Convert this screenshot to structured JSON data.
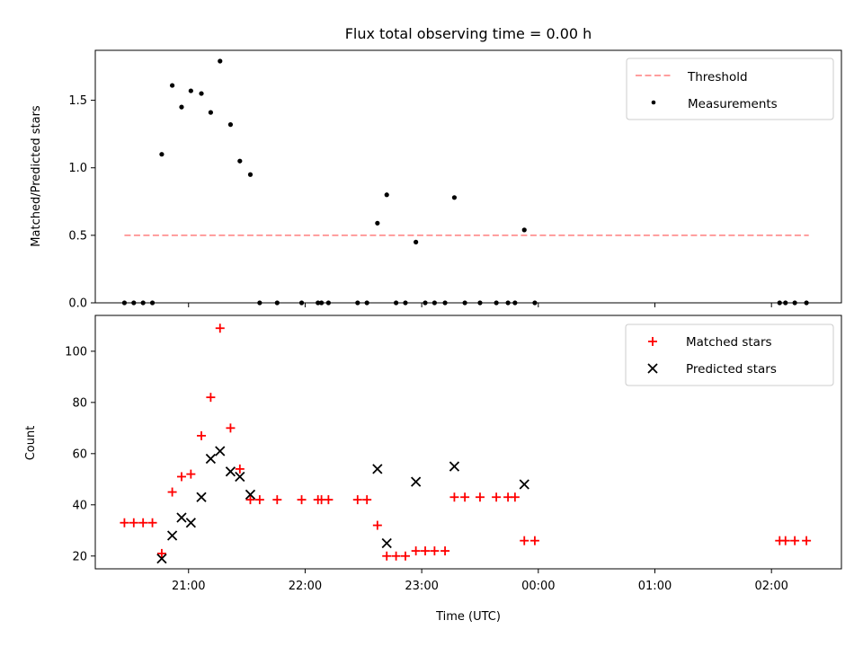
{
  "chart_data": {
    "title": "Flux total observing time = 0.00 h",
    "x_axis": {
      "label": "Time (UTC)",
      "range_hours": [
        20.2,
        26.6
      ],
      "ticks": [
        {
          "h": 21,
          "label": "21:00"
        },
        {
          "h": 22,
          "label": "22:00"
        },
        {
          "h": 23,
          "label": "23:00"
        },
        {
          "h": 24,
          "label": "00:00"
        },
        {
          "h": 25,
          "label": "01:00"
        },
        {
          "h": 26,
          "label": "02:00"
        }
      ]
    },
    "panels": [
      {
        "type": "scatter",
        "ylabel": "Matched/Predicted stars",
        "ylim": [
          0,
          1.87
        ],
        "yticks": [
          {
            "v": 0,
            "label": "0.0"
          },
          {
            "v": 0.5,
            "label": "0.5"
          },
          {
            "v": 1.0,
            "label": "1.0"
          },
          {
            "v": 1.5,
            "label": "1.5"
          }
        ],
        "legend": {
          "position": "top-right",
          "items": [
            {
              "label": "Threshold",
              "kind": "dashed-line",
              "color": "#ff7f7f"
            },
            {
              "label": "Measurements",
              "kind": "dot",
              "color": "#000000"
            }
          ]
        },
        "threshold": {
          "value": 0.5,
          "x_range": [
            20.45,
            26.32
          ],
          "color": "#ff7f7f"
        },
        "measurements": {
          "color": "#000000",
          "points": [
            [
              20.45,
              0.0
            ],
            [
              20.53,
              0.0
            ],
            [
              20.61,
              0.0
            ],
            [
              20.69,
              0.0
            ],
            [
              20.77,
              1.1
            ],
            [
              20.86,
              1.61
            ],
            [
              20.94,
              1.45
            ],
            [
              21.02,
              1.57
            ],
            [
              21.11,
              1.55
            ],
            [
              21.19,
              1.41
            ],
            [
              21.27,
              1.79
            ],
            [
              21.36,
              1.32
            ],
            [
              21.44,
              1.05
            ],
            [
              21.53,
              0.95
            ],
            [
              21.61,
              0.0
            ],
            [
              21.76,
              0.0
            ],
            [
              21.97,
              0.0
            ],
            [
              22.11,
              0.0
            ],
            [
              22.14,
              0.0
            ],
            [
              22.2,
              0.0
            ],
            [
              22.45,
              0.0
            ],
            [
              22.53,
              0.0
            ],
            [
              22.62,
              0.59
            ],
            [
              22.7,
              0.8
            ],
            [
              22.78,
              0.0
            ],
            [
              22.86,
              0.0
            ],
            [
              22.95,
              0.45
            ],
            [
              23.03,
              0.0
            ],
            [
              23.11,
              0.0
            ],
            [
              23.2,
              0.0
            ],
            [
              23.28,
              0.78
            ],
            [
              23.37,
              0.0
            ],
            [
              23.5,
              0.0
            ],
            [
              23.64,
              0.0
            ],
            [
              23.74,
              0.0
            ],
            [
              23.8,
              0.0
            ],
            [
              23.88,
              0.54
            ],
            [
              23.97,
              0.0
            ],
            [
              26.07,
              0.0
            ],
            [
              26.12,
              0.0
            ],
            [
              26.2,
              0.0
            ],
            [
              26.3,
              0.0
            ]
          ]
        }
      },
      {
        "type": "scatter",
        "ylabel": "Count",
        "ylim": [
          15,
          114
        ],
        "yticks": [
          {
            "v": 20,
            "label": "20"
          },
          {
            "v": 40,
            "label": "40"
          },
          {
            "v": 60,
            "label": "60"
          },
          {
            "v": 80,
            "label": "80"
          },
          {
            "v": 100,
            "label": "100"
          }
        ],
        "legend": {
          "position": "top-right",
          "items": [
            {
              "label": "Matched stars",
              "kind": "plus",
              "color": "#ff0000"
            },
            {
              "label": "Predicted stars",
              "kind": "cross",
              "color": "#000000"
            }
          ]
        },
        "series": [
          {
            "name": "Matched stars",
            "marker": "plus",
            "color": "#ff0000",
            "points": [
              [
                20.45,
                33
              ],
              [
                20.53,
                33
              ],
              [
                20.61,
                33
              ],
              [
                20.69,
                33
              ],
              [
                20.77,
                21
              ],
              [
                20.86,
                45
              ],
              [
                20.94,
                51
              ],
              [
                21.02,
                52
              ],
              [
                21.11,
                67
              ],
              [
                21.19,
                82
              ],
              [
                21.27,
                109
              ],
              [
                21.36,
                70
              ],
              [
                21.44,
                54
              ],
              [
                21.53,
                42
              ],
              [
                21.61,
                42
              ],
              [
                21.76,
                42
              ],
              [
                21.97,
                42
              ],
              [
                22.11,
                42
              ],
              [
                22.14,
                42
              ],
              [
                22.2,
                42
              ],
              [
                22.45,
                42
              ],
              [
                22.53,
                42
              ],
              [
                22.62,
                32
              ],
              [
                22.7,
                20
              ],
              [
                22.78,
                20
              ],
              [
                22.86,
                20
              ],
              [
                22.95,
                22
              ],
              [
                23.03,
                22
              ],
              [
                23.11,
                22
              ],
              [
                23.2,
                22
              ],
              [
                23.28,
                43
              ],
              [
                23.37,
                43
              ],
              [
                23.5,
                43
              ],
              [
                23.64,
                43
              ],
              [
                23.74,
                43
              ],
              [
                23.8,
                43
              ],
              [
                23.88,
                26
              ],
              [
                23.97,
                26
              ],
              [
                26.07,
                26
              ],
              [
                26.12,
                26
              ],
              [
                26.2,
                26
              ],
              [
                26.3,
                26
              ]
            ]
          },
          {
            "name": "Predicted stars",
            "marker": "cross",
            "color": "#000000",
            "points": [
              [
                20.77,
                19
              ],
              [
                20.86,
                28
              ],
              [
                20.94,
                35
              ],
              [
                21.02,
                33
              ],
              [
                21.11,
                43
              ],
              [
                21.19,
                58
              ],
              [
                21.27,
                61
              ],
              [
                21.36,
                53
              ],
              [
                21.44,
                51
              ],
              [
                21.53,
                44
              ],
              [
                22.62,
                54
              ],
              [
                22.7,
                25
              ],
              [
                22.95,
                49
              ],
              [
                23.28,
                55
              ],
              [
                23.88,
                48
              ]
            ]
          }
        ]
      }
    ]
  }
}
